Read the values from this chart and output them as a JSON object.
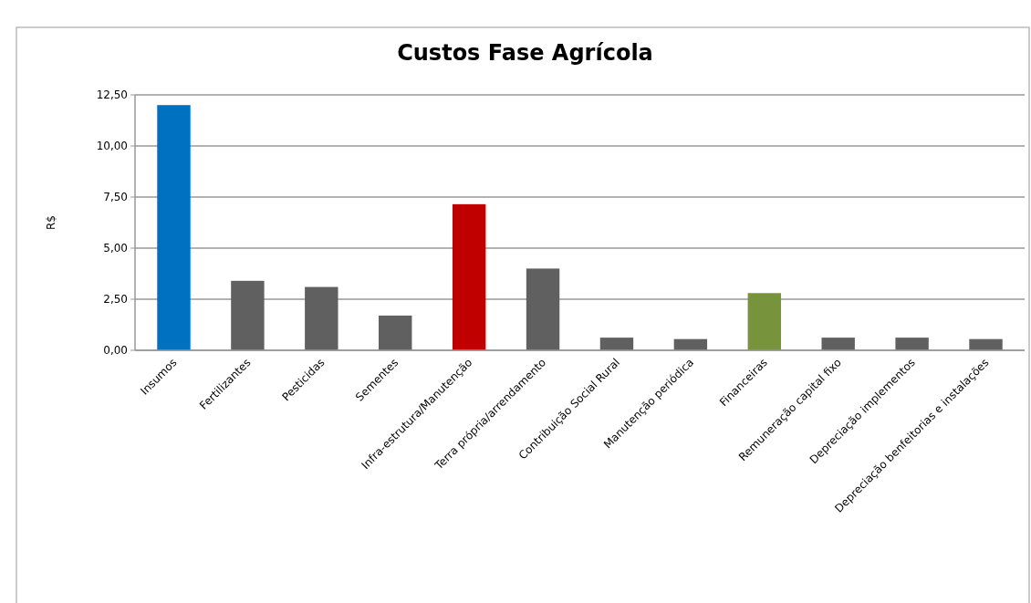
{
  "chart_data": {
    "type": "bar",
    "title": "Custos Fase Agrícola",
    "ylabel": "R$",
    "categories": [
      "Insumos",
      "Fertilizantes",
      "Pesticidas",
      "Sementes",
      "Infra-estrutura/Manutenção",
      "Terra própria/arrendamento",
      "Contribuição Social Rural",
      "Manutenção periódica",
      "Financeiras",
      "Remuneração capital fixo",
      "Depreciação implementos",
      "Depreciação benfeitorias e instalações"
    ],
    "values": [
      12.0,
      3.4,
      3.1,
      1.7,
      7.15,
      4.0,
      0.62,
      0.55,
      2.8,
      0.62,
      0.62,
      0.55
    ],
    "colors": [
      "#0070c0",
      "#606060",
      "#606060",
      "#606060",
      "#c00000",
      "#606060",
      "#606060",
      "#606060",
      "#77933c",
      "#606060",
      "#606060",
      "#606060"
    ],
    "ylim": [
      0,
      12.5
    ],
    "yticks": [
      {
        "value": 0,
        "label": "0,00"
      },
      {
        "value": 2.5,
        "label": "2,50"
      },
      {
        "value": 5,
        "label": "5,00"
      },
      {
        "value": 7.5,
        "label": "7,50"
      },
      {
        "value": 10,
        "label": "10,00"
      },
      {
        "value": 12.5,
        "label": "12,50"
      }
    ],
    "grid": "y"
  }
}
